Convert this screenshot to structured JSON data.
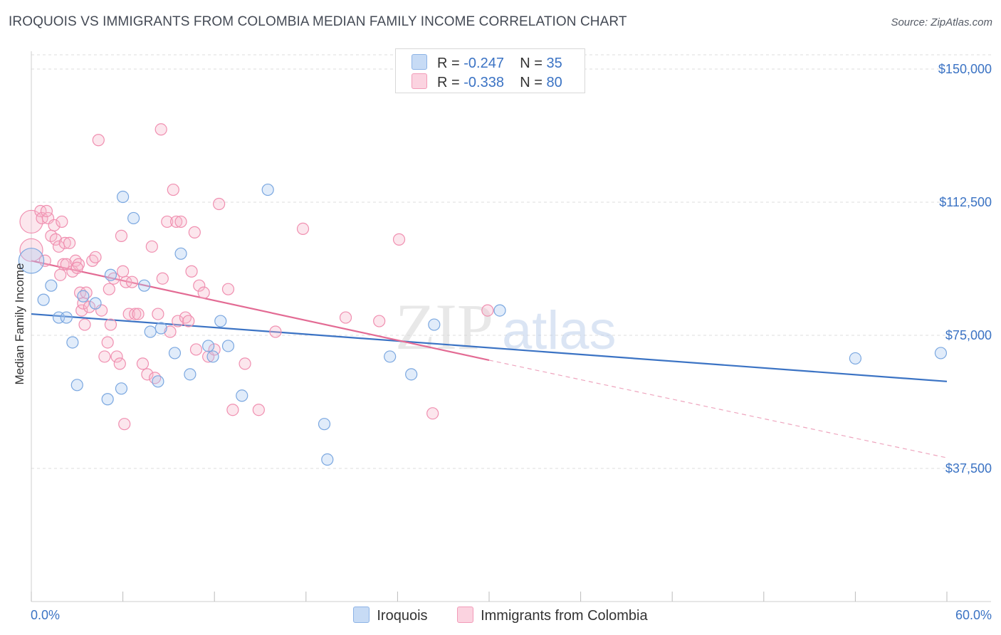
{
  "header": {
    "title": "IROQUOIS VS IMMIGRANTS FROM COLOMBIA MEDIAN FAMILY INCOME CORRELATION CHART",
    "source": "Source: ZipAtlas.com"
  },
  "legend": {
    "rows": [
      {
        "r_label": "R =",
        "r_value": "-0.247",
        "n_label": "N =",
        "n_value": "35",
        "color": "#a9c8f0"
      },
      {
        "r_label": "R =",
        "r_value": "-0.338",
        "n_label": "N =",
        "n_value": "80",
        "color": "#f7b8cc"
      }
    ]
  },
  "bottom_legend": [
    {
      "label": "Iroquois",
      "color": "#a9c8f0"
    },
    {
      "label": "Immigrants from Colombia",
      "color": "#f7b8cc"
    }
  ],
  "watermark": {
    "zip": "ZIP",
    "atlas": "atlas"
  },
  "chart_data": {
    "type": "scatter",
    "title": "IROQUOIS VS IMMIGRANTS FROM COLOMBIA MEDIAN FAMILY INCOME CORRELATION CHART",
    "xlabel": "",
    "ylabel": "Median Family Income",
    "xlim": [
      0,
      60
    ],
    "ylim": [
      0,
      153000
    ],
    "x_tick_labels": [
      "0.0%",
      "60.0%"
    ],
    "y_ticks": [
      37500,
      75000,
      112500,
      150000
    ],
    "y_tick_labels": [
      "$37,500",
      "$75,000",
      "$112,500",
      "$150,000"
    ],
    "grid": true,
    "legend_position": "top-center",
    "colors": {
      "iroquois": "#3b73c4",
      "colombia": "#e36b94"
    },
    "series": [
      {
        "name": "Iroquois",
        "color": "#6fa0de",
        "trend": {
          "x0": 0,
          "y0": 81000,
          "x1": 60,
          "y1": 62000,
          "dashed_to": null
        },
        "points": [
          [
            0.0,
            96000,
            2.2
          ],
          [
            0.8,
            85000,
            1
          ],
          [
            1.3,
            89000,
            1
          ],
          [
            1.8,
            80000,
            1
          ],
          [
            2.3,
            80000,
            1
          ],
          [
            2.7,
            73000,
            1
          ],
          [
            3.0,
            61000,
            1
          ],
          [
            3.4,
            86000,
            1
          ],
          [
            4.2,
            84000,
            1
          ],
          [
            5.0,
            57000,
            1
          ],
          [
            5.2,
            92000,
            1
          ],
          [
            5.9,
            60000,
            1
          ],
          [
            6.0,
            114000,
            1
          ],
          [
            6.7,
            108000,
            1
          ],
          [
            7.4,
            89000,
            1
          ],
          [
            7.8,
            76000,
            1
          ],
          [
            8.3,
            62000,
            1
          ],
          [
            8.5,
            77000,
            1
          ],
          [
            9.4,
            70000,
            1
          ],
          [
            9.8,
            98000,
            1
          ],
          [
            10.4,
            64000,
            1
          ],
          [
            11.6,
            72000,
            1
          ],
          [
            11.9,
            69000,
            1
          ],
          [
            12.4,
            79000,
            1
          ],
          [
            12.9,
            72000,
            1
          ],
          [
            13.8,
            58000,
            1
          ],
          [
            15.5,
            116000,
            1
          ],
          [
            19.2,
            50000,
            1
          ],
          [
            19.4,
            40000,
            1
          ],
          [
            23.5,
            69000,
            1
          ],
          [
            24.9,
            64000,
            1
          ],
          [
            26.4,
            78000,
            1
          ],
          [
            30.7,
            82000,
            1
          ],
          [
            54.0,
            68500,
            1
          ],
          [
            59.6,
            70000,
            1
          ]
        ]
      },
      {
        "name": "Immigrants from Colombia",
        "color": "#f093b2",
        "trend": {
          "x0": 0,
          "y0": 96000,
          "x1": 30,
          "y1": 68000,
          "dashed_to": {
            "x": 60,
            "y": 40500
          }
        },
        "points": [
          [
            0.0,
            107000,
            2
          ],
          [
            0.0,
            99000,
            2
          ],
          [
            0.6,
            110000,
            1
          ],
          [
            0.7,
            108000,
            1
          ],
          [
            0.9,
            96000,
            1
          ],
          [
            1.1,
            108000,
            1
          ],
          [
            1.3,
            103000,
            1
          ],
          [
            1.5,
            106000,
            1
          ],
          [
            1.6,
            102000,
            1
          ],
          [
            1.8,
            100000,
            1
          ],
          [
            2.0,
            107000,
            1
          ],
          [
            2.1,
            95000,
            1
          ],
          [
            2.2,
            101000,
            1
          ],
          [
            2.3,
            95000,
            1
          ],
          [
            2.5,
            101000,
            1
          ],
          [
            2.7,
            93000,
            1
          ],
          [
            2.9,
            96000,
            1
          ],
          [
            3.1,
            95000,
            1
          ],
          [
            3.2,
            87000,
            1
          ],
          [
            3.3,
            82000,
            1
          ],
          [
            3.4,
            84000,
            1
          ],
          [
            3.5,
            78000,
            1
          ],
          [
            3.6,
            87000,
            1
          ],
          [
            3.8,
            83000,
            1
          ],
          [
            4.0,
            96000,
            1
          ],
          [
            4.2,
            97000,
            1
          ],
          [
            4.4,
            130000,
            1
          ],
          [
            4.6,
            82000,
            1
          ],
          [
            4.8,
            69000,
            1
          ],
          [
            5.0,
            73000,
            1
          ],
          [
            5.2,
            78000,
            1
          ],
          [
            5.4,
            91000,
            1
          ],
          [
            5.6,
            69000,
            1
          ],
          [
            5.8,
            67000,
            1
          ],
          [
            5.9,
            103000,
            1
          ],
          [
            6.0,
            93000,
            1
          ],
          [
            6.2,
            90000,
            1
          ],
          [
            6.4,
            81000,
            1
          ],
          [
            6.6,
            90000,
            1
          ],
          [
            6.8,
            81000,
            1
          ],
          [
            7.0,
            81000,
            1
          ],
          [
            7.3,
            67000,
            1
          ],
          [
            7.6,
            64000,
            1
          ],
          [
            7.9,
            100000,
            1
          ],
          [
            8.1,
            63000,
            1
          ],
          [
            8.3,
            81000,
            1
          ],
          [
            8.5,
            133000,
            1
          ],
          [
            8.6,
            91000,
            1
          ],
          [
            8.9,
            107000,
            1
          ],
          [
            9.1,
            76000,
            1
          ],
          [
            9.3,
            116000,
            1
          ],
          [
            9.5,
            107000,
            1
          ],
          [
            9.6,
            79000,
            1
          ],
          [
            9.8,
            107000,
            1
          ],
          [
            10.1,
            80000,
            1
          ],
          [
            10.3,
            79000,
            1
          ],
          [
            10.5,
            93000,
            1
          ],
          [
            10.7,
            104000,
            1
          ],
          [
            10.8,
            71000,
            1
          ],
          [
            11.0,
            89000,
            1
          ],
          [
            11.3,
            87000,
            1
          ],
          [
            11.6,
            69000,
            1
          ],
          [
            12.0,
            71000,
            1
          ],
          [
            12.3,
            112000,
            1
          ],
          [
            12.9,
            88000,
            1
          ],
          [
            13.2,
            54000,
            1
          ],
          [
            14.0,
            67000,
            1
          ],
          [
            14.9,
            54000,
            1
          ],
          [
            16.0,
            76000,
            1
          ],
          [
            17.8,
            105000,
            1
          ],
          [
            20.6,
            80000,
            1
          ],
          [
            22.8,
            79000,
            1
          ],
          [
            24.1,
            102000,
            1
          ],
          [
            26.3,
            53000,
            1
          ],
          [
            29.9,
            82000,
            1
          ],
          [
            1.0,
            110000,
            1
          ],
          [
            1.9,
            92000,
            1
          ],
          [
            3.0,
            94000,
            1
          ],
          [
            6.1,
            50000,
            1
          ],
          [
            5.1,
            88000,
            1
          ]
        ]
      }
    ]
  }
}
